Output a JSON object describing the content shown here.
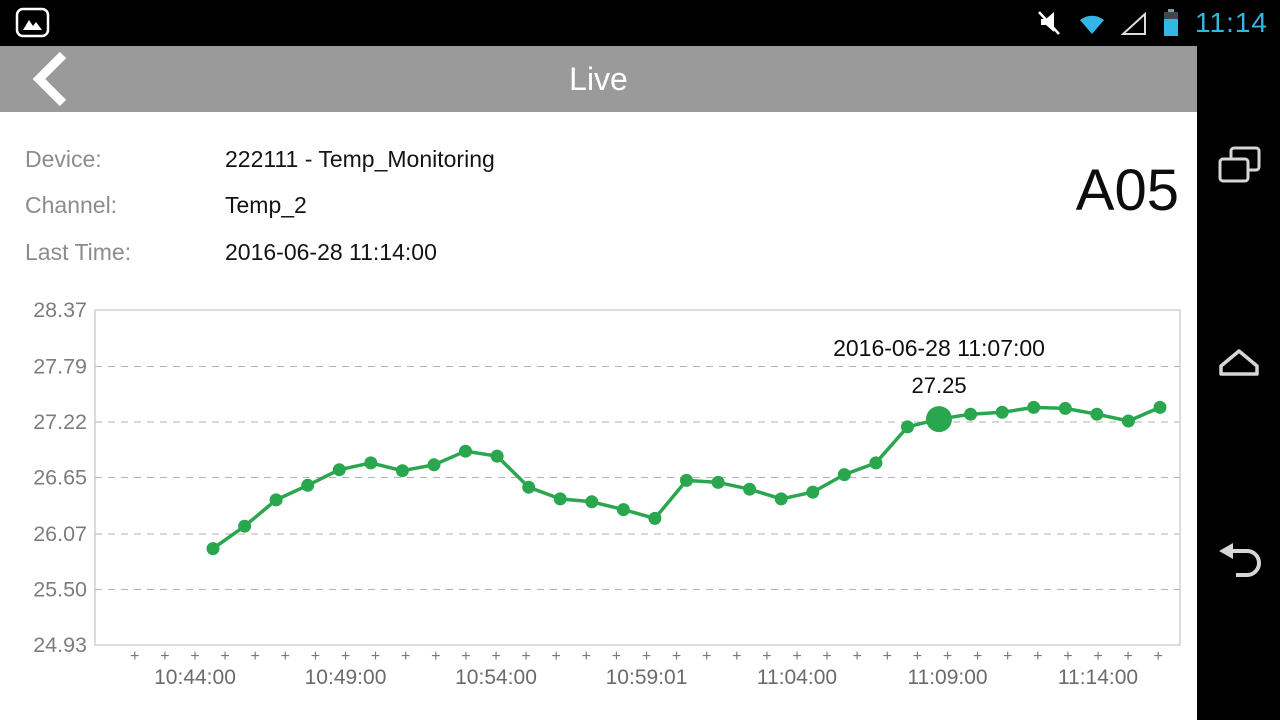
{
  "status_bar": {
    "time": "11:14",
    "accent_color": "#33b5e5"
  },
  "header": {
    "title": "Live"
  },
  "info": {
    "rows": [
      {
        "label": "Device:",
        "value": "222111 - Temp_Monitoring"
      },
      {
        "label": "Channel:",
        "value": "Temp_2"
      },
      {
        "label": "Last Time:",
        "value": "2016-06-28 11:14:00"
      }
    ],
    "channel_code": "A05"
  },
  "chart_data": {
    "type": "line",
    "x": [
      "10:44:00",
      "10:45:00",
      "10:46:00",
      "10:47:00",
      "10:48:00",
      "10:49:00",
      "10:50:00",
      "10:51:00",
      "10:52:00",
      "10:53:00",
      "10:54:00",
      "10:55:00",
      "10:56:00",
      "10:57:00",
      "10:58:00",
      "10:59:00",
      "11:00:00",
      "11:01:00",
      "11:02:00",
      "11:03:00",
      "11:04:00",
      "11:05:00",
      "11:06:00",
      "11:07:00",
      "11:08:00",
      "11:09:00",
      "11:10:00",
      "11:11:00",
      "11:12:00",
      "11:13:00",
      "11:14:00"
    ],
    "series": [
      {
        "name": "Temp_2",
        "color": "#2aa64e",
        "values": [
          25.92,
          26.15,
          26.42,
          26.57,
          26.73,
          26.8,
          26.72,
          26.78,
          26.92,
          26.87,
          26.55,
          26.43,
          26.4,
          26.32,
          26.23,
          26.62,
          26.6,
          26.53,
          26.43,
          26.5,
          26.68,
          26.8,
          27.17,
          27.25,
          27.3,
          27.32,
          27.37,
          27.36,
          27.3,
          27.23,
          27.37
        ]
      }
    ],
    "x_tick_labels": [
      "10:44:00",
      "10:49:00",
      "10:54:00",
      "10:59:01",
      "11:04:00",
      "11:09:00",
      "11:14:00"
    ],
    "y_ticks": [
      28.37,
      27.79,
      27.22,
      26.65,
      26.07,
      25.5,
      24.93
    ],
    "ylim": [
      24.93,
      28.37
    ],
    "grid": "dashed-horizontal",
    "legend": "none",
    "selected_point": {
      "index": 23,
      "time_label": "2016-06-28 11:07:00",
      "value": 27.25,
      "value_label": "27.25"
    }
  }
}
